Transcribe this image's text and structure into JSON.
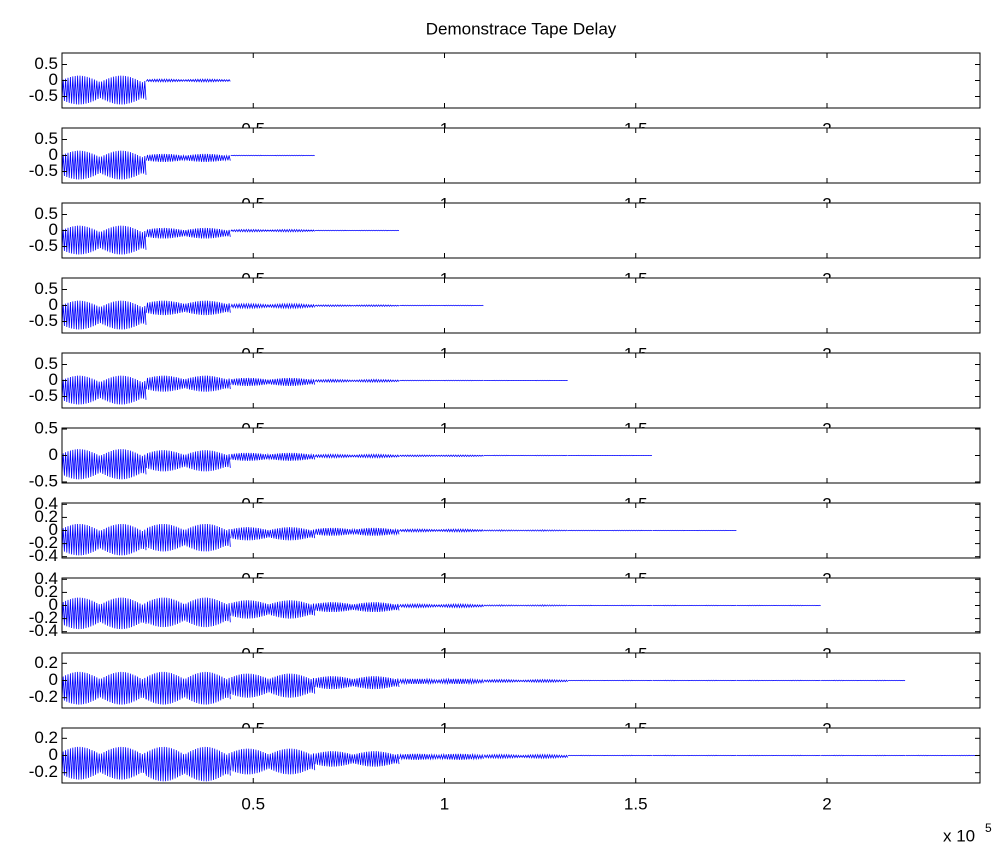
{
  "chart_data": [
    {
      "type": "waveform",
      "title": "Demonstrace Tape Delay",
      "color": "#0000ff",
      "edges": [
        0,
        22050,
        44100
      ],
      "lows": [
        -0.75,
        -0.04
      ],
      "highs": [
        0.15,
        0.04
      ],
      "xlim": [
        0,
        240000
      ],
      "xticks": [
        {
          "value": 50000,
          "label": "0.5"
        },
        {
          "value": 100000,
          "label": "1"
        },
        {
          "value": 150000,
          "label": "1.5"
        },
        {
          "value": 200000,
          "label": "2"
        }
      ],
      "ylim": [
        -0.86,
        0.86
      ],
      "yticks": [
        -0.5,
        0,
        0.5
      ]
    },
    {
      "type": "waveform",
      "color": "#0000ff",
      "edges": [
        0,
        22050,
        44100,
        66150
      ],
      "lows": [
        -0.75,
        -0.2,
        -0.01
      ],
      "highs": [
        0.15,
        0.05,
        0.01
      ],
      "xlim": [
        0,
        240000
      ],
      "xticks": [
        {
          "value": 50000,
          "label": "0.5"
        },
        {
          "value": 100000,
          "label": "1"
        },
        {
          "value": 150000,
          "label": "1.5"
        },
        {
          "value": 200000,
          "label": "2"
        }
      ],
      "ylim": [
        -0.86,
        0.86
      ],
      "yticks": [
        -0.5,
        0,
        0.5
      ]
    },
    {
      "type": "waveform",
      "color": "#0000ff",
      "edges": [
        0,
        22050,
        44100,
        66150,
        88200
      ],
      "lows": [
        -0.75,
        -0.25,
        -0.04,
        -0.01
      ],
      "highs": [
        0.15,
        0.08,
        0.03,
        0.01
      ],
      "xlim": [
        0,
        240000
      ],
      "xticks": [
        {
          "value": 50000,
          "label": "0.5"
        },
        {
          "value": 100000,
          "label": "1"
        },
        {
          "value": 150000,
          "label": "1.5"
        },
        {
          "value": 200000,
          "label": "2"
        }
      ],
      "ylim": [
        -0.86,
        0.86
      ],
      "yticks": [
        -0.5,
        0,
        0.5
      ]
    },
    {
      "type": "waveform",
      "color": "#0000ff",
      "edges": [
        0,
        22050,
        44100,
        66150,
        88200,
        110250
      ],
      "lows": [
        -0.75,
        -0.3,
        -0.08,
        -0.03,
        -0.01
      ],
      "highs": [
        0.15,
        0.15,
        0.05,
        0.02,
        0.01
      ],
      "xlim": [
        0,
        240000
      ],
      "xticks": [
        {
          "value": 50000,
          "label": "0.5"
        },
        {
          "value": 100000,
          "label": "1"
        },
        {
          "value": 150000,
          "label": "1.5"
        },
        {
          "value": 200000,
          "label": "2"
        }
      ],
      "ylim": [
        -0.86,
        0.86
      ],
      "yticks": [
        -0.5,
        0,
        0.5
      ]
    },
    {
      "type": "waveform",
      "color": "#0000ff",
      "edges": [
        0,
        22050,
        44100,
        66150,
        88200,
        110250,
        132300
      ],
      "lows": [
        -0.75,
        -0.35,
        -0.17,
        -0.05,
        -0.01,
        -0.005
      ],
      "highs": [
        0.15,
        0.15,
        0.08,
        0.03,
        0.01,
        0.005
      ],
      "xlim": [
        0,
        240000
      ],
      "xticks": [
        {
          "value": 50000,
          "label": "0.5"
        },
        {
          "value": 100000,
          "label": "1"
        },
        {
          "value": 150000,
          "label": "1.5"
        },
        {
          "value": 200000,
          "label": "2"
        }
      ],
      "ylim": [
        -0.86,
        0.86
      ],
      "yticks": [
        -0.5,
        0,
        0.5
      ]
    },
    {
      "type": "waveform",
      "color": "#0000ff",
      "edges": [
        0,
        22050,
        44100,
        66150,
        88200,
        110250,
        132300,
        154350
      ],
      "lows": [
        -0.45,
        -0.3,
        -0.1,
        -0.04,
        -0.02,
        -0.005,
        -0.003
      ],
      "highs": [
        0.12,
        0.1,
        0.05,
        0.02,
        0.01,
        0.005,
        0.003
      ],
      "xlim": [
        0,
        240000
      ],
      "xticks": [
        {
          "value": 50000,
          "label": "0.5"
        },
        {
          "value": 100000,
          "label": "1"
        },
        {
          "value": 150000,
          "label": "1.5"
        },
        {
          "value": 200000,
          "label": "2"
        }
      ],
      "ylim": [
        -0.52,
        0.52
      ],
      "yticks": [
        -0.5,
        0,
        0.5
      ]
    },
    {
      "type": "waveform",
      "color": "#0000ff",
      "edges": [
        0,
        22050,
        44100,
        66150,
        88200,
        110250,
        132300,
        154350,
        176400
      ],
      "lows": [
        -0.38,
        -0.32,
        -0.15,
        -0.08,
        -0.02,
        -0.01,
        -0.005,
        -0.003
      ],
      "highs": [
        0.1,
        0.1,
        0.05,
        0.04,
        0.02,
        0.01,
        0.005,
        0.003
      ],
      "xlim": [
        0,
        240000
      ],
      "xticks": [
        {
          "value": 50000,
          "label": "0.5"
        },
        {
          "value": 100000,
          "label": "1"
        },
        {
          "value": 150000,
          "label": "1.5"
        },
        {
          "value": 200000,
          "label": "2"
        }
      ],
      "ylim": [
        -0.42,
        0.42
      ],
      "yticks": [
        -0.4,
        -0.2,
        0,
        0.2,
        0.4
      ]
    },
    {
      "type": "waveform",
      "color": "#0000ff",
      "edges": [
        0,
        22050,
        44100,
        66150,
        88200,
        110250,
        132300,
        154350,
        176400,
        198450
      ],
      "lows": [
        -0.36,
        -0.33,
        -0.2,
        -0.1,
        -0.03,
        -0.01,
        -0.004,
        -0.004,
        -0.004
      ],
      "highs": [
        0.12,
        0.12,
        0.08,
        0.05,
        0.02,
        0.01,
        0.004,
        0.004,
        0.004
      ],
      "xlim": [
        0,
        240000
      ],
      "xticks": [
        {
          "value": 50000,
          "label": "0.5"
        },
        {
          "value": 100000,
          "label": "1"
        },
        {
          "value": 150000,
          "label": "1.5"
        },
        {
          "value": 200000,
          "label": "2"
        }
      ],
      "ylim": [
        -0.42,
        0.42
      ],
      "yticks": [
        -0.4,
        -0.2,
        0,
        0.2,
        0.4
      ]
    },
    {
      "type": "waveform",
      "color": "#0000ff",
      "edges": [
        0,
        22050,
        44100,
        66150,
        88200,
        110250,
        132300,
        154350,
        176400,
        198450,
        220500
      ],
      "lows": [
        -0.28,
        -0.28,
        -0.2,
        -0.1,
        -0.04,
        -0.02,
        -0.003,
        -0.003,
        -0.003,
        -0.003
      ],
      "highs": [
        0.1,
        0.1,
        0.08,
        0.05,
        0.02,
        0.01,
        0.003,
        0.003,
        0.003,
        0.003
      ],
      "xlim": [
        0,
        240000
      ],
      "xticks": [
        {
          "value": 50000,
          "label": "0.5"
        },
        {
          "value": 100000,
          "label": "1"
        },
        {
          "value": 150000,
          "label": "1.5"
        },
        {
          "value": 200000,
          "label": "2"
        }
      ],
      "ylim": [
        -0.32,
        0.32
      ],
      "yticks": [
        -0.2,
        0,
        0.2
      ]
    },
    {
      "type": "waveform",
      "color": "#0000ff",
      "edges": [
        0,
        22050,
        44100,
        66150,
        88200,
        110250,
        132300,
        154350,
        176400,
        198450,
        220500,
        242550
      ],
      "lows": [
        -0.28,
        -0.3,
        -0.22,
        -0.13,
        -0.05,
        -0.03,
        -0.003,
        -0.003,
        -0.003,
        -0.003,
        -0.003
      ],
      "highs": [
        0.1,
        0.1,
        0.08,
        0.05,
        0.02,
        0.01,
        0.003,
        0.003,
        0.003,
        0.003,
        0.003
      ],
      "xlim": [
        0,
        240000
      ],
      "xticks": [
        {
          "value": 50000,
          "label": "0.5"
        },
        {
          "value": 100000,
          "label": "1"
        },
        {
          "value": 150000,
          "label": "1.5"
        },
        {
          "value": 200000,
          "label": "2"
        }
      ],
      "ylim": [
        -0.32,
        0.32
      ],
      "yticks": [
        -0.2,
        0,
        0.2
      ],
      "x_scale_label": "x 10",
      "x_scale_exponent": "5"
    }
  ]
}
